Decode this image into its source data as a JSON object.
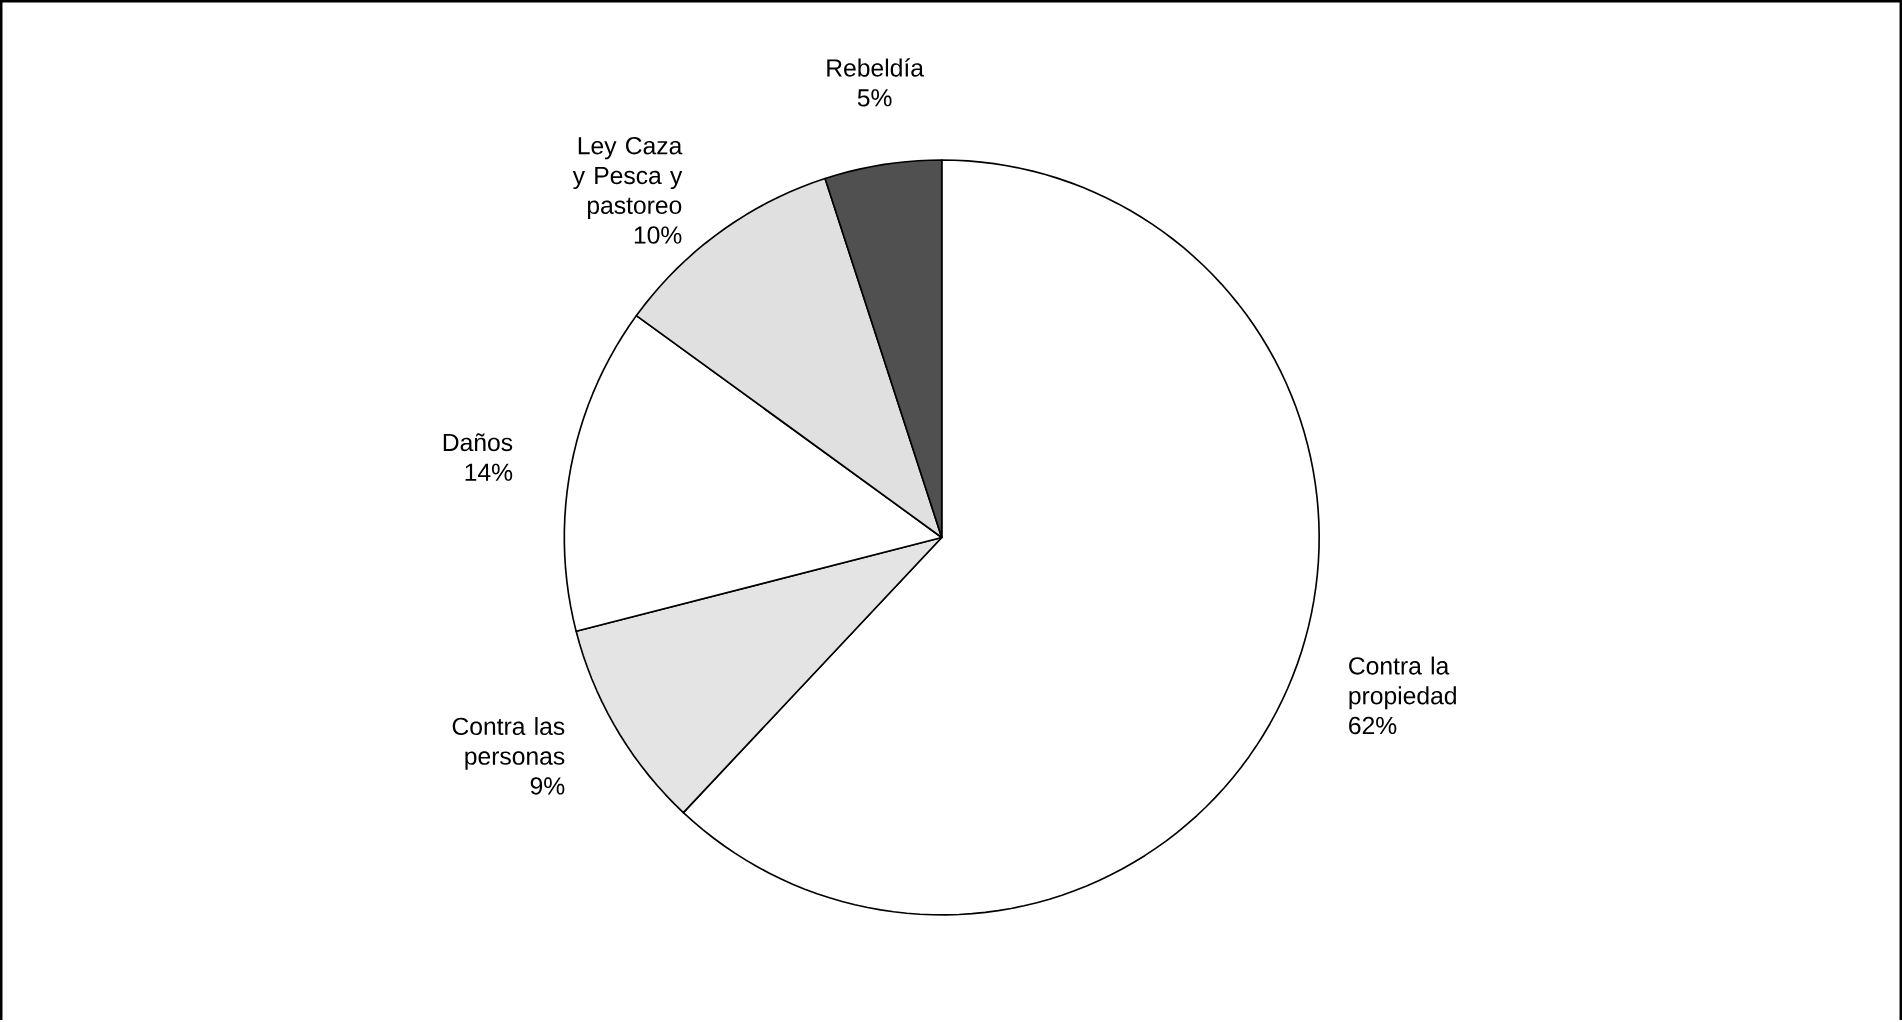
{
  "chart_data": {
    "type": "pie",
    "categories": [
      "Contra la propiedad",
      "Contra las personas",
      "Daños",
      "Ley Caza y Pesca y pastoreo",
      "Rebeldía"
    ],
    "values": [
      62,
      9,
      14,
      10,
      5
    ],
    "value_labels": [
      "62%",
      "9%",
      "14%",
      "10%",
      "5%"
    ],
    "colors": [
      "#ffffff",
      "#e4e4e4",
      "#ffffff",
      "#e0e0e0",
      "#505050"
    ]
  }
}
